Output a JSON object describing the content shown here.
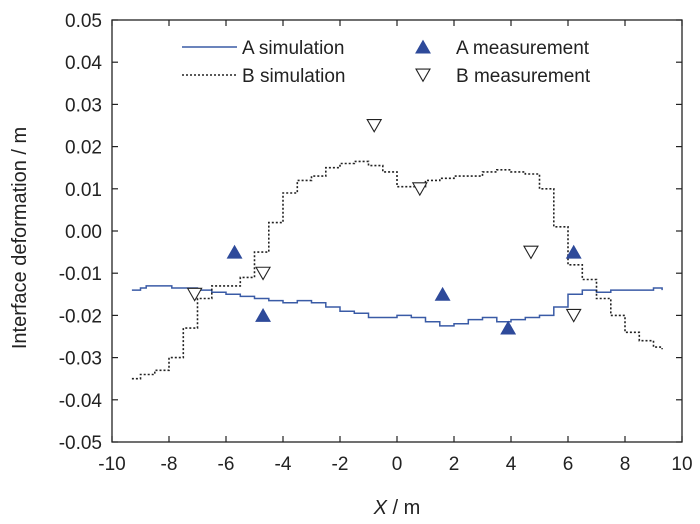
{
  "chart_data": {
    "type": "line",
    "xlabel_var": "X",
    "xlabel_unit": " / m",
    "ylabel": "Interface deformation / m",
    "xlim": [
      -10,
      10
    ],
    "ylim": [
      -0.05,
      0.05
    ],
    "x_ticks": [
      -10,
      -8,
      -6,
      -4,
      -2,
      0,
      2,
      4,
      6,
      8,
      10
    ],
    "y_ticks": [
      -0.05,
      -0.04,
      -0.03,
      -0.02,
      -0.01,
      0.0,
      0.01,
      0.02,
      0.03,
      0.04,
      0.05
    ],
    "x_tick_labels": [
      "-10",
      "-8",
      "-6",
      "-4",
      "-2",
      "0",
      "2",
      "4",
      "6",
      "8",
      "10"
    ],
    "y_tick_labels": [
      "-0.05",
      "-0.04",
      "-0.03",
      "-0.02",
      "-0.01",
      "0.00",
      "0.01",
      "0.02",
      "0.03",
      "0.04",
      "0.05"
    ],
    "legend_position": "top",
    "grid": false,
    "series": [
      {
        "name": "A simulation",
        "kind": "line",
        "style": "solid",
        "color": "#3a5ba6",
        "x": [
          -9.3,
          -9.0,
          -8.8,
          -8.3,
          -7.9,
          -7.5,
          -7.0,
          -6.5,
          -6.0,
          -5.5,
          -5.0,
          -4.5,
          -4.0,
          -3.5,
          -3.0,
          -2.5,
          -2.0,
          -1.5,
          -1.0,
          -0.5,
          0.0,
          0.5,
          1.0,
          1.5,
          2.0,
          2.5,
          3.0,
          3.5,
          4.0,
          4.5,
          5.0,
          5.5,
          6.0,
          6.5,
          7.0,
          7.5,
          8.0,
          8.5,
          9.0,
          9.3
        ],
        "y": [
          -0.014,
          -0.0135,
          -0.013,
          -0.013,
          -0.0135,
          -0.0135,
          -0.014,
          -0.0145,
          -0.015,
          -0.0155,
          -0.016,
          -0.0165,
          -0.017,
          -0.0165,
          -0.017,
          -0.018,
          -0.019,
          -0.0195,
          -0.0205,
          -0.0205,
          -0.02,
          -0.0205,
          -0.0215,
          -0.0225,
          -0.022,
          -0.021,
          -0.0205,
          -0.0215,
          -0.021,
          -0.0205,
          -0.02,
          -0.018,
          -0.015,
          -0.014,
          -0.0145,
          -0.014,
          -0.014,
          -0.014,
          -0.0135,
          -0.014
        ]
      },
      {
        "name": "B simulation",
        "kind": "line",
        "style": "dotted",
        "color": "#222222",
        "x": [
          -9.3,
          -9.0,
          -8.5,
          -8.0,
          -7.5,
          -7.0,
          -6.5,
          -6.0,
          -5.5,
          -5.0,
          -4.5,
          -4.0,
          -3.5,
          -3.0,
          -2.5,
          -2.0,
          -1.5,
          -1.0,
          -0.5,
          0.0,
          0.5,
          1.0,
          1.5,
          2.0,
          2.5,
          3.0,
          3.5,
          4.0,
          4.5,
          5.0,
          5.5,
          6.0,
          6.5,
          7.0,
          7.5,
          8.0,
          8.5,
          9.0,
          9.3
        ],
        "y": [
          -0.035,
          -0.034,
          -0.033,
          -0.03,
          -0.023,
          -0.016,
          -0.013,
          -0.013,
          -0.011,
          -0.005,
          0.002,
          0.009,
          0.012,
          0.013,
          0.015,
          0.016,
          0.0165,
          0.0155,
          0.014,
          0.0105,
          0.0105,
          0.012,
          0.0125,
          0.013,
          0.013,
          0.014,
          0.0145,
          0.014,
          0.0135,
          0.01,
          0.001,
          -0.008,
          -0.0115,
          -0.016,
          -0.02,
          -0.024,
          -0.026,
          -0.0275,
          -0.028
        ]
      },
      {
        "name": "A measurement",
        "kind": "scatter",
        "marker": "triangle-up-filled",
        "color": "#2e4a9a",
        "x": [
          -5.7,
          -4.7,
          1.6,
          3.9,
          6.2
        ],
        "y": [
          -0.005,
          -0.02,
          -0.015,
          -0.023,
          -0.005
        ]
      },
      {
        "name": "B measurement",
        "kind": "scatter",
        "marker": "triangle-down-open",
        "color": "#222222",
        "x": [
          -7.1,
          -4.7,
          -0.8,
          0.8,
          4.7,
          6.2
        ],
        "y": [
          -0.015,
          -0.01,
          0.025,
          0.01,
          -0.005,
          -0.02
        ]
      }
    ]
  }
}
